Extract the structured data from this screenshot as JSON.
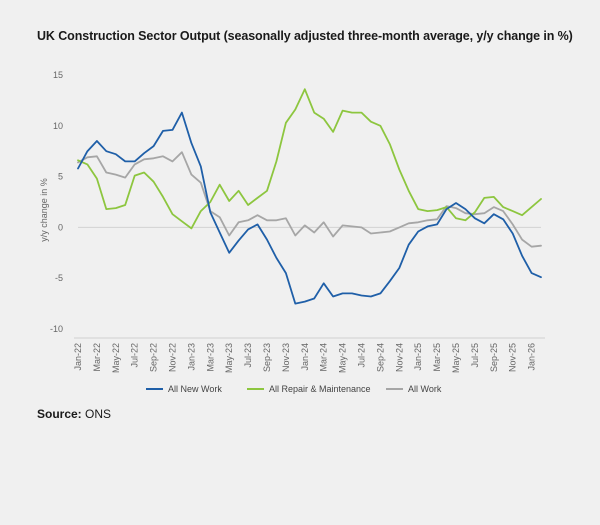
{
  "title": "UK Construction Sector Output (seasonally adjusted three-month average, y/y change in %)",
  "source_label": "Source:",
  "source_value": "ONS",
  "chart_data": {
    "type": "line",
    "ylabel": "y/y change in %",
    "xlabel": "",
    "ylim": [
      -10,
      15
    ],
    "yticks": [
      -10,
      -5,
      0,
      5,
      10,
      15
    ],
    "grid": false,
    "legend_position": "bottom",
    "x": [
      "Jan-22",
      "Feb-22",
      "Mar-22",
      "Apr-22",
      "May-22",
      "Jun-22",
      "Jul-22",
      "Aug-22",
      "Sep-22",
      "Oct-22",
      "Nov-22",
      "Dec-22",
      "Jan-23",
      "Feb-23",
      "Mar-23",
      "Apr-23",
      "May-23",
      "Jun-23",
      "Jul-23",
      "Aug-23",
      "Sep-23",
      "Oct-23",
      "Nov-23",
      "Dec-23",
      "Jan-24",
      "Feb-24",
      "Mar-24",
      "Apr-24",
      "May-24",
      "Jun-24",
      "Jul-24",
      "Aug-24",
      "Sep-24",
      "Oct-24",
      "Nov-24",
      "Dec-24",
      "Jan-25",
      "Feb-25",
      "Mar-25",
      "Apr-25",
      "May-25",
      "Jun-25",
      "Jul-25",
      "Aug-25",
      "Sep-25",
      "Oct-25",
      "Nov-25",
      "Dec-25",
      "Jan-26",
      "Feb-26"
    ],
    "tick_labels": [
      "Jan-22",
      "Mar-22",
      "May-22",
      "Jul-22",
      "Sep-22",
      "Nov-22",
      "Jan-23",
      "Mar-23",
      "May-23",
      "Jul-23",
      "Sep-23",
      "Nov-23",
      "Jan-24",
      "Mar-24",
      "May-24",
      "Jul-24",
      "Sep-24",
      "Nov-24",
      "Jan-25",
      "Mar-25",
      "May-25",
      "Jul-25",
      "Sep-25",
      "Nov-25",
      "Jan-26"
    ],
    "series": [
      {
        "name": "All New Work",
        "color": "#1f5fa8",
        "values": [
          5.8,
          7.5,
          8.5,
          7.5,
          7.2,
          6.5,
          6.5,
          7.3,
          8.0,
          9.5,
          9.6,
          11.3,
          8.3,
          6.0,
          1.5,
          -0.5,
          -2.5,
          -1.3,
          -0.2,
          0.3,
          -1.2,
          -3.0,
          -4.5,
          -7.5,
          -7.3,
          -7.0,
          -5.5,
          -6.8,
          -6.5,
          -6.5,
          -6.7,
          -6.8,
          -6.5,
          -5.3,
          -4.0,
          -1.7,
          -0.4,
          0.1,
          0.3,
          1.8,
          2.4,
          1.8,
          0.9,
          0.4,
          1.3,
          0.8,
          -0.6,
          -2.8,
          -4.5,
          -4.9
        ]
      },
      {
        "name": "All Repair & Maintenance",
        "color": "#8dc63f",
        "values": [
          6.6,
          6.2,
          4.8,
          1.8,
          1.9,
          2.2,
          5.1,
          5.4,
          4.5,
          3.0,
          1.3,
          0.6,
          -0.1,
          1.6,
          2.5,
          4.2,
          2.6,
          3.6,
          2.2,
          2.9,
          3.6,
          6.5,
          10.3,
          11.6,
          13.6,
          11.3,
          10.7,
          9.4,
          11.5,
          11.3,
          11.3,
          10.4,
          10.0,
          8.2,
          5.7,
          3.6,
          1.8,
          1.6,
          1.7,
          2.0,
          0.9,
          0.7,
          1.5,
          2.9,
          3.0,
          2.0,
          1.6,
          1.2,
          2.0,
          2.8
        ]
      },
      {
        "name": "All Work",
        "color": "#a6a6a6",
        "values": [
          6.4,
          6.9,
          7.0,
          5.4,
          5.2,
          4.9,
          6.2,
          6.7,
          6.8,
          7.0,
          6.5,
          7.4,
          5.2,
          4.4,
          1.6,
          1.0,
          -0.8,
          0.5,
          0.7,
          1.2,
          0.7,
          0.7,
          0.9,
          -0.8,
          0.2,
          -0.5,
          0.5,
          -0.9,
          0.2,
          0.1,
          0.0,
          -0.6,
          -0.5,
          -0.4,
          0.0,
          0.4,
          0.5,
          0.7,
          0.8,
          2.1,
          1.9,
          1.4,
          1.3,
          1.4,
          2.0,
          1.6,
          0.3,
          -1.2,
          -1.9,
          -1.8
        ]
      }
    ]
  }
}
